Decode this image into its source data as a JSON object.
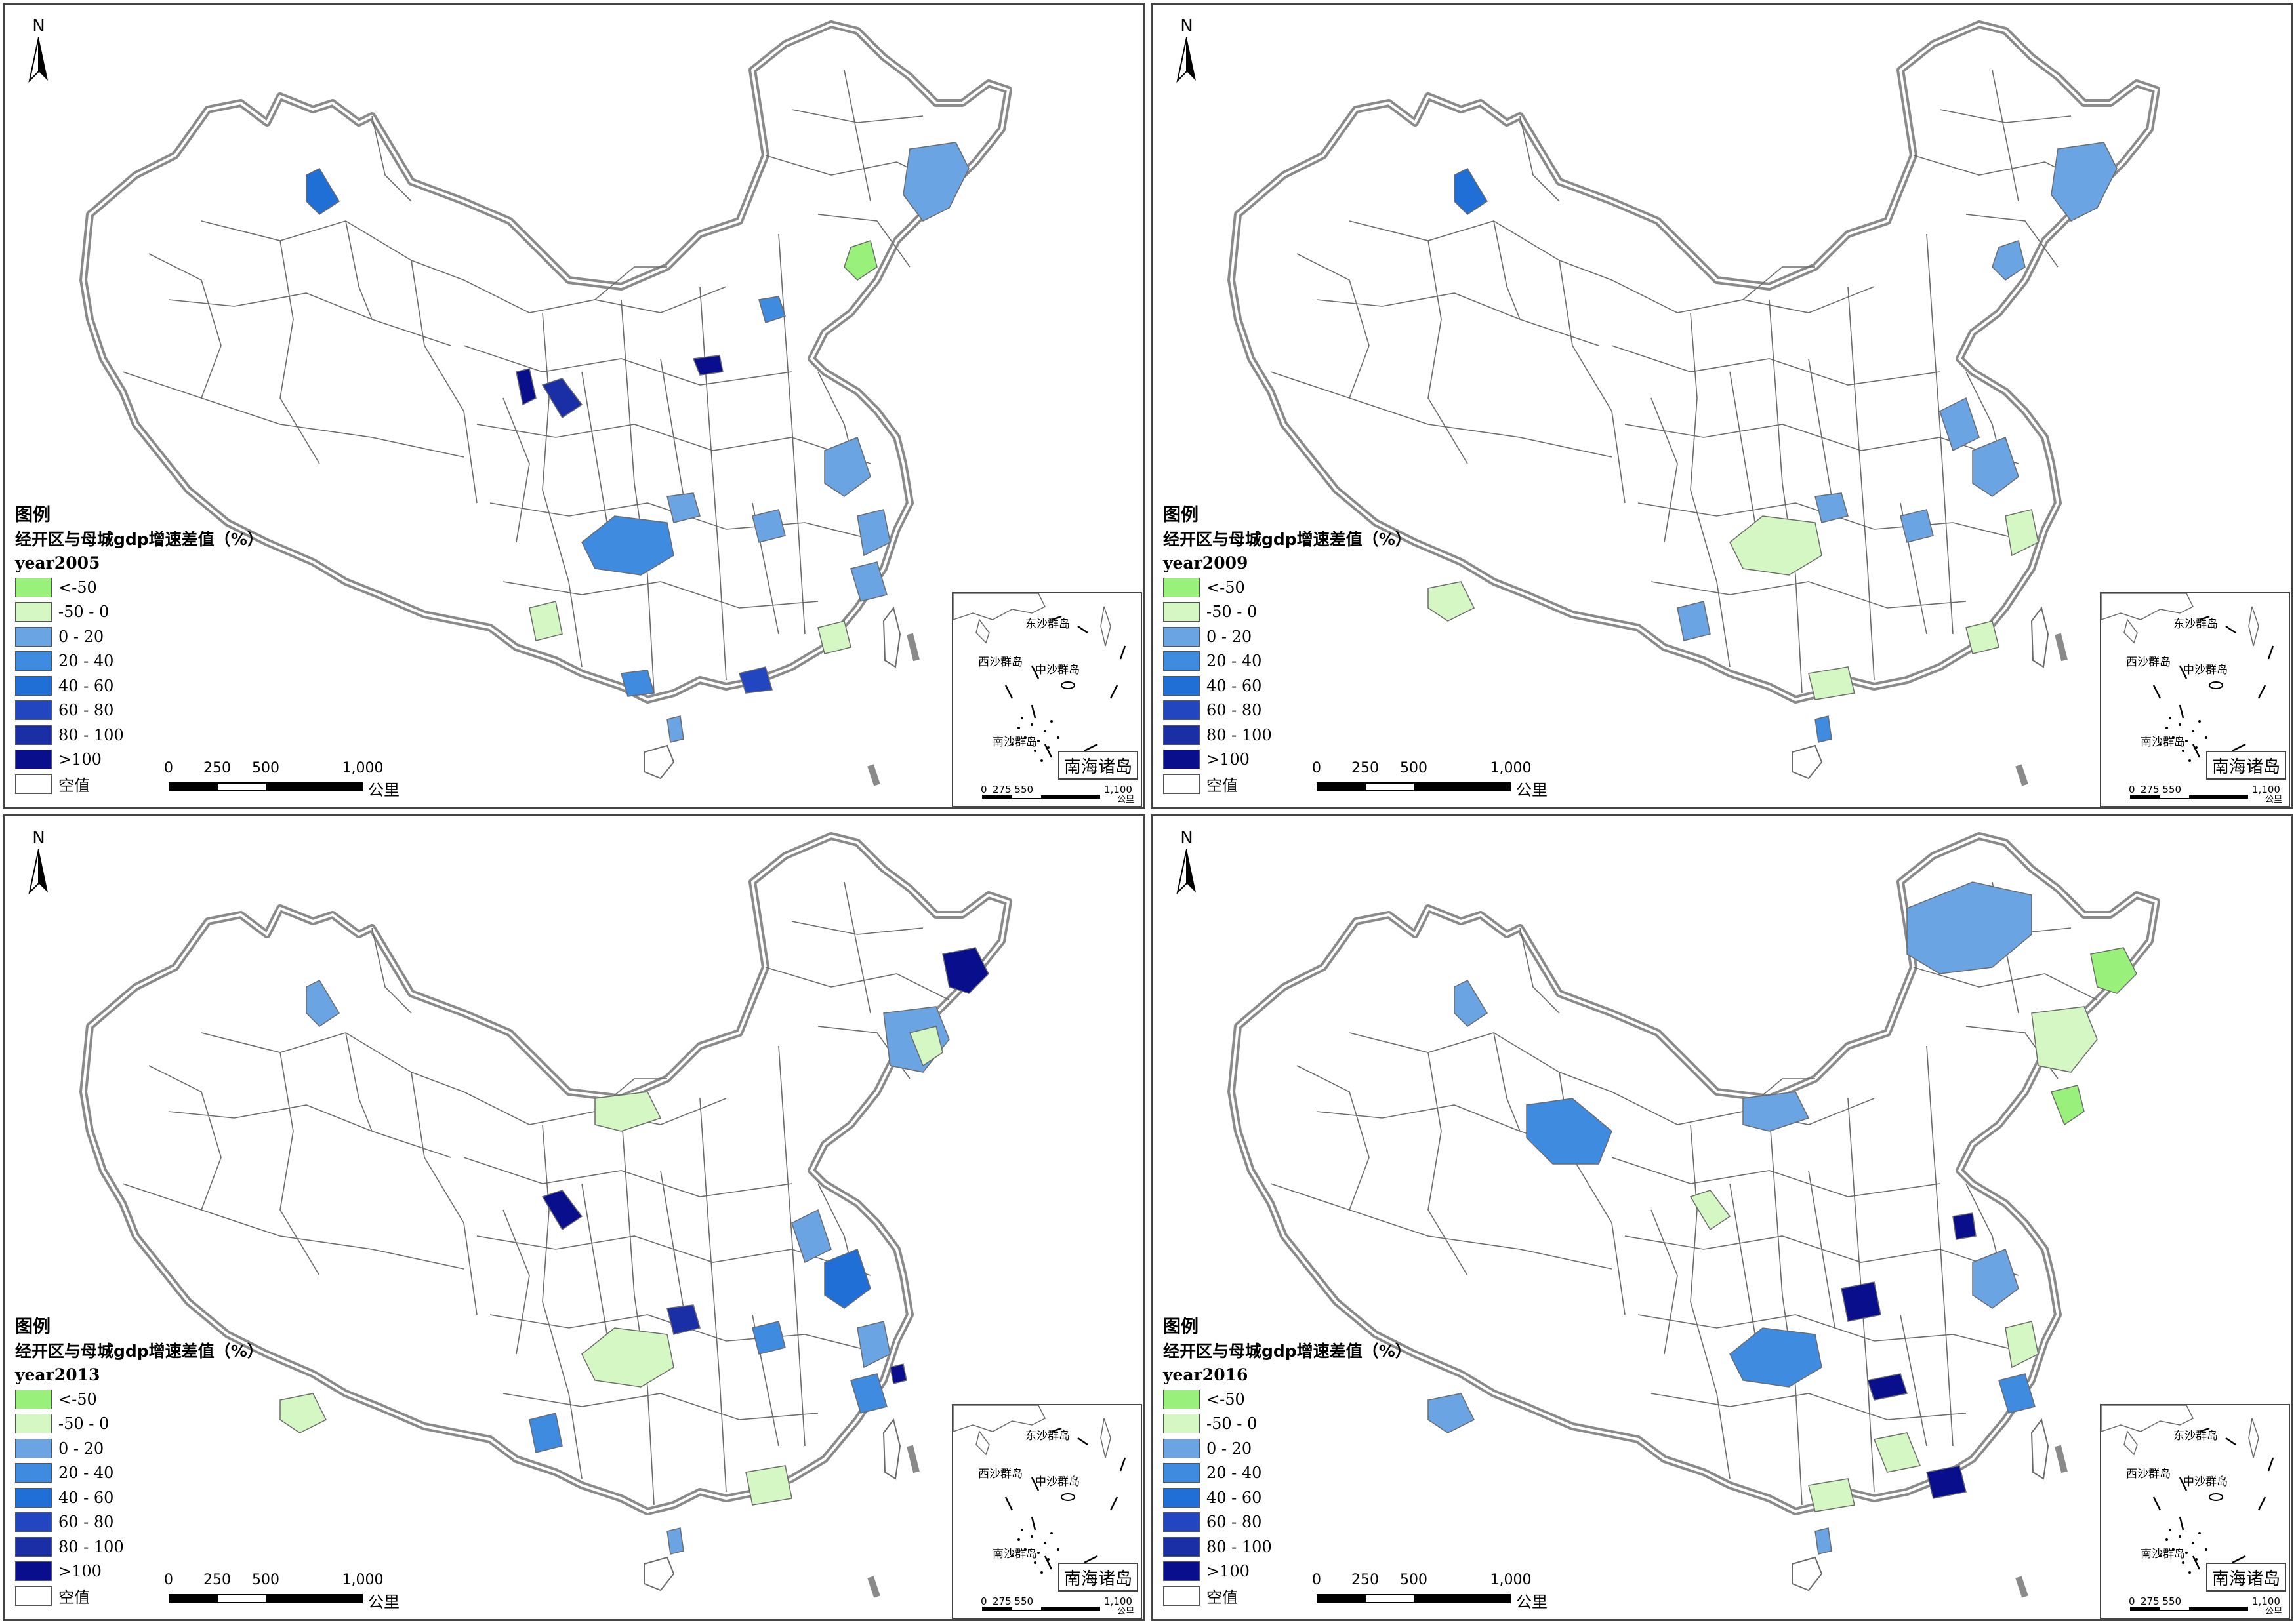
{
  "colors": {
    "lt_neg50": "#99f07a",
    "neg50_0": "#d4f7c4",
    "p0_20": "#6aa4e2",
    "p20_40": "#3f8be0",
    "p40_60": "#1f6fd6",
    "p60_80": "#2146c0",
    "p80_100": "#1a2ea6",
    "gt100": "#090e8c",
    "null": "#ffffff",
    "border": "#6a6a6a"
  },
  "legend": {
    "title": "图例",
    "subtitle": "经开区与母城gdp增速差值（%）",
    "items": [
      {
        "label": "<-50",
        "color_key": "lt_neg50"
      },
      {
        "label": "-50 - 0",
        "color_key": "neg50_0"
      },
      {
        "label": "0 - 20",
        "color_key": "p0_20"
      },
      {
        "label": "20 - 40",
        "color_key": "p20_40"
      },
      {
        "label": "40 - 60",
        "color_key": "p40_60"
      },
      {
        "label": "60 - 80",
        "color_key": "p60_80"
      },
      {
        "label": "80 - 100",
        "color_key": "p80_100"
      },
      {
        "label": ">100",
        "color_key": "gt100"
      },
      {
        "label": "空值",
        "color_key": "null"
      }
    ]
  },
  "north_label": "N",
  "scale_bar": {
    "ticks": [
      "0",
      "250",
      "500",
      "1,000"
    ],
    "unit": "公里"
  },
  "inset": {
    "title": "南海诸岛",
    "labels": [
      "东沙群岛",
      "西沙群岛",
      "中沙群岛",
      "南沙群岛"
    ],
    "scale_ticks": [
      "0",
      "275 550",
      "1,100"
    ],
    "scale_unit": "公里"
  },
  "panels": [
    {
      "year": "year2005",
      "regions": [
        {
          "name": "hulunbuir",
          "class": "p0_20"
        },
        {
          "name": "liaoning-coast",
          "class": "lt_neg50"
        },
        {
          "name": "hohhot",
          "class": "p20_40"
        },
        {
          "name": "baotou",
          "class": "gt100"
        },
        {
          "name": "yinchuan",
          "class": "gt100"
        },
        {
          "name": "lanzhou",
          "class": "p80_100"
        },
        {
          "name": "urumqi",
          "class": "p40_60"
        },
        {
          "name": "chengdu",
          "class": "p20_40"
        },
        {
          "name": "shandong",
          "class": "p0_20"
        },
        {
          "name": "jiangsu",
          "class": "p0_20"
        },
        {
          "name": "wuhan",
          "class": "p0_20"
        },
        {
          "name": "guangzhou",
          "class": "p60_80"
        },
        {
          "name": "nanning",
          "class": "p20_40"
        },
        {
          "name": "haikou",
          "class": "p0_20"
        },
        {
          "name": "kunming",
          "class": "neg50_0"
        },
        {
          "name": "fujian",
          "class": "neg50_0"
        },
        {
          "name": "xian",
          "class": "p0_20"
        },
        {
          "name": "zhejiang",
          "class": "p0_20"
        }
      ]
    },
    {
      "year": "year2009",
      "regions": [
        {
          "name": "hulunbuir",
          "class": "p0_20"
        },
        {
          "name": "urumqi",
          "class": "p40_60"
        },
        {
          "name": "shandong",
          "class": "p0_20"
        },
        {
          "name": "liaoning-coast",
          "class": "p0_20"
        },
        {
          "name": "chengdu",
          "class": "neg50_0"
        },
        {
          "name": "lhasa",
          "class": "neg50_0"
        },
        {
          "name": "wuhan",
          "class": "p0_20"
        },
        {
          "name": "jiangsu",
          "class": "neg50_0"
        },
        {
          "name": "haikou",
          "class": "p20_40"
        },
        {
          "name": "fujian",
          "class": "neg50_0"
        },
        {
          "name": "kunming",
          "class": "p0_20"
        },
        {
          "name": "guangxi",
          "class": "neg50_0"
        },
        {
          "name": "hebei",
          "class": "p0_20"
        },
        {
          "name": "xian",
          "class": "p0_20"
        }
      ]
    },
    {
      "year": "year2013",
      "regions": [
        {
          "name": "heilongjiang-east",
          "class": "gt100"
        },
        {
          "name": "jilin",
          "class": "p0_20"
        },
        {
          "name": "hulunbuir-south",
          "class": "neg50_0"
        },
        {
          "name": "inner-mongolia",
          "class": "neg50_0"
        },
        {
          "name": "lanzhou",
          "class": "gt100"
        },
        {
          "name": "xian",
          "class": "p80_100"
        },
        {
          "name": "chengdu",
          "class": "neg50_0"
        },
        {
          "name": "shandong",
          "class": "p40_60"
        },
        {
          "name": "jiangsu",
          "class": "p0_20"
        },
        {
          "name": "wuhan",
          "class": "p20_40"
        },
        {
          "name": "zhejiang",
          "class": "p20_40"
        },
        {
          "name": "guangdong",
          "class": "neg50_0"
        },
        {
          "name": "lhasa",
          "class": "neg50_0"
        },
        {
          "name": "kunming",
          "class": "p20_40"
        },
        {
          "name": "haikou",
          "class": "p0_20"
        },
        {
          "name": "shanghai",
          "class": "gt100"
        },
        {
          "name": "urumqi",
          "class": "p0_20"
        },
        {
          "name": "hebei",
          "class": "p0_20"
        }
      ]
    },
    {
      "year": "year2016",
      "regions": [
        {
          "name": "hulunbuir-large",
          "class": "p0_20"
        },
        {
          "name": "heilongjiang-east",
          "class": "lt_neg50"
        },
        {
          "name": "jilin",
          "class": "neg50_0"
        },
        {
          "name": "haixi",
          "class": "p20_40"
        },
        {
          "name": "inner-mongolia",
          "class": "p0_20"
        },
        {
          "name": "lanzhou",
          "class": "neg50_0"
        },
        {
          "name": "beijing",
          "class": "gt100"
        },
        {
          "name": "chengdu",
          "class": "p20_40"
        },
        {
          "name": "chongqing",
          "class": "gt100"
        },
        {
          "name": "shaanxi",
          "class": "gt100"
        },
        {
          "name": "hunan",
          "class": "neg50_0"
        },
        {
          "name": "jiangxi",
          "class": "gt100"
        },
        {
          "name": "shandong",
          "class": "p0_20"
        },
        {
          "name": "jiangsu",
          "class": "neg50_0"
        },
        {
          "name": "lhasa",
          "class": "p0_20"
        },
        {
          "name": "guangxi",
          "class": "neg50_0"
        },
        {
          "name": "haikou",
          "class": "p0_20"
        },
        {
          "name": "zhejiang",
          "class": "p20_40"
        },
        {
          "name": "urumqi",
          "class": "p0_20"
        },
        {
          "name": "liaoning",
          "class": "lt_neg50"
        }
      ]
    }
  ]
}
